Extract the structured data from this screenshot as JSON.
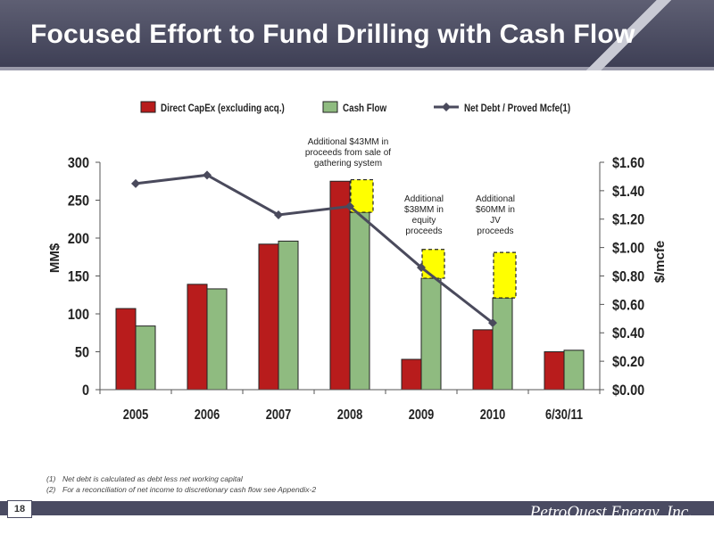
{
  "slide": {
    "title": "Focused Effort to Fund Drilling with Cash Flow",
    "page_number": "18",
    "company": "PetroQuest Energy, Inc.",
    "footnotes": [
      {
        "num": "(1)",
        "text": "Net debt is calculated as debt less net working capital"
      },
      {
        "num": "(2)",
        "text": "For a reconciliation of net income to discretionary cash flow see Appendix-2"
      }
    ]
  },
  "chart_data": {
    "type": "bar",
    "title": "",
    "categories": [
      "2005",
      "2006",
      "2007",
      "2008",
      "2009",
      "2010",
      "6/30/11"
    ],
    "ylabel": "MM$",
    "ylim": [
      0,
      300
    ],
    "yticks": [
      "0",
      "50",
      "100",
      "150",
      "200",
      "250",
      "300"
    ],
    "y2label": "$/mcfe",
    "y2lim": [
      0,
      1.6
    ],
    "y2ticks": [
      "$0.00",
      "$0.20",
      "$0.40",
      "$0.60",
      "$0.80",
      "$1.00",
      "$1.20",
      "$1.40",
      "$1.60"
    ],
    "legend_position": "top",
    "grid": false,
    "series": [
      {
        "name": "Direct CapEx (excluding acq.)",
        "type": "bar",
        "axis": "left",
        "color": "#b81c1c",
        "values": [
          107,
          139,
          192,
          275,
          40,
          79,
          50
        ]
      },
      {
        "name": "Cash Flow",
        "type": "bar",
        "axis": "left",
        "color": "#8fbb80",
        "values": [
          84,
          133,
          196,
          234,
          147,
          121,
          52
        ]
      },
      {
        "name": "Net Debt / Proved Mcfe(1)",
        "type": "line",
        "axis": "right",
        "color": "#4a4a5c",
        "values": [
          1.45,
          1.51,
          1.23,
          1.29,
          0.86,
          0.47,
          null
        ]
      }
    ],
    "annotations": [
      {
        "category": "2008",
        "amount": 43,
        "base": 234,
        "lines": [
          "Additional $43MM in",
          "proceeds from sale of",
          "gathering system"
        ]
      },
      {
        "category": "2009",
        "amount": 38,
        "base": 147,
        "lines": [
          "Additional",
          "$38MM in",
          "equity",
          "proceeds"
        ]
      },
      {
        "category": "2010",
        "amount": 60,
        "base": 121,
        "lines": [
          "Additional",
          "$60MM in",
          "JV",
          "proceeds"
        ]
      }
    ],
    "annotation_color": "#ffff00"
  }
}
